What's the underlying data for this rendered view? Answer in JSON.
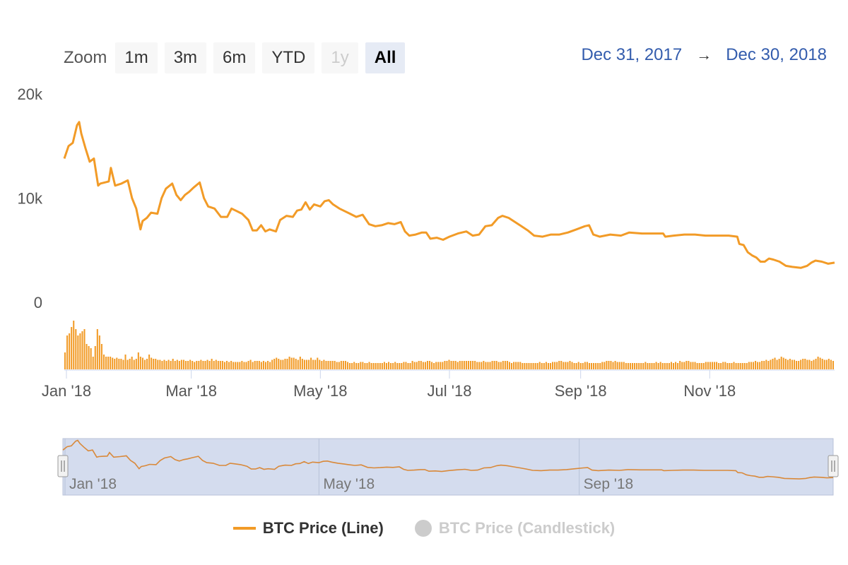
{
  "range_selector": {
    "zoom_label": "Zoom",
    "buttons": [
      {
        "label": "1m",
        "state": "normal"
      },
      {
        "label": "3m",
        "state": "normal"
      },
      {
        "label": "6m",
        "state": "normal"
      },
      {
        "label": "YTD",
        "state": "normal"
      },
      {
        "label": "1y",
        "state": "disabled"
      },
      {
        "label": "All",
        "state": "selected"
      }
    ],
    "from_date": "Dec 31, 2017",
    "arrow": "→",
    "to_date": "Dec 30, 2018"
  },
  "colors": {
    "series": "#f29b27",
    "navigator_mask": "#ccd6eb",
    "range_text": "#335cad",
    "hidden_legend": "#cccccc"
  },
  "legend": [
    {
      "label": "BTC Price (Line)",
      "visible": true
    },
    {
      "label": "BTC Price (Candlestick)",
      "visible": false
    }
  ],
  "chart_data": {
    "type": "line",
    "x_range": [
      "2017-12-31",
      "2018-12-30"
    ],
    "ylim": [
      0,
      20000
    ],
    "y_ticks": [
      "0",
      "10k",
      "20k"
    ],
    "x_ticks": [
      {
        "date": "2018-01-01",
        "label": "Jan '18"
      },
      {
        "date": "2018-03-01",
        "label": "Mar '18"
      },
      {
        "date": "2018-05-01",
        "label": "May '18"
      },
      {
        "date": "2018-07-01",
        "label": "Jul '18"
      },
      {
        "date": "2018-09-01",
        "label": "Sep '18"
      },
      {
        "date": "2018-11-01",
        "label": "Nov '18"
      }
    ],
    "navigator_ticks": [
      {
        "date": "2018-01-01",
        "label": "Jan '18"
      },
      {
        "date": "2018-05-01",
        "label": "May '18"
      },
      {
        "date": "2018-09-01",
        "label": "Sep '18"
      }
    ],
    "grid": false,
    "series": [
      {
        "name": "BTC Price (Line)",
        "points": [
          [
            "2017-12-31",
            13800
          ],
          [
            "2018-01-02",
            15000
          ],
          [
            "2018-01-04",
            15300
          ],
          [
            "2018-01-06",
            17000
          ],
          [
            "2018-01-07",
            17300
          ],
          [
            "2018-01-08",
            16200
          ],
          [
            "2018-01-10",
            14800
          ],
          [
            "2018-01-12",
            13500
          ],
          [
            "2018-01-14",
            13800
          ],
          [
            "2018-01-16",
            11200
          ],
          [
            "2018-01-17",
            11400
          ],
          [
            "2018-01-19",
            11500
          ],
          [
            "2018-01-21",
            11600
          ],
          [
            "2018-01-22",
            12900
          ],
          [
            "2018-01-24",
            11200
          ],
          [
            "2018-01-27",
            11400
          ],
          [
            "2018-01-30",
            11700
          ],
          [
            "2018-02-01",
            10000
          ],
          [
            "2018-02-03",
            9000
          ],
          [
            "2018-02-05",
            7000
          ],
          [
            "2018-02-06",
            7800
          ],
          [
            "2018-02-08",
            8100
          ],
          [
            "2018-02-10",
            8600
          ],
          [
            "2018-02-13",
            8500
          ],
          [
            "2018-02-15",
            10000
          ],
          [
            "2018-02-17",
            10900
          ],
          [
            "2018-02-20",
            11400
          ],
          [
            "2018-02-22",
            10300
          ],
          [
            "2018-02-24",
            9800
          ],
          [
            "2018-02-26",
            10300
          ],
          [
            "2018-02-28",
            10600
          ],
          [
            "2018-03-02",
            11000
          ],
          [
            "2018-03-05",
            11500
          ],
          [
            "2018-03-07",
            10000
          ],
          [
            "2018-03-09",
            9200
          ],
          [
            "2018-03-12",
            9000
          ],
          [
            "2018-03-15",
            8200
          ],
          [
            "2018-03-18",
            8200
          ],
          [
            "2018-03-20",
            9000
          ],
          [
            "2018-03-22",
            8800
          ],
          [
            "2018-03-25",
            8500
          ],
          [
            "2018-03-28",
            7900
          ],
          [
            "2018-03-30",
            6900
          ],
          [
            "2018-04-01",
            6900
          ],
          [
            "2018-04-03",
            7400
          ],
          [
            "2018-04-05",
            6800
          ],
          [
            "2018-04-07",
            7000
          ],
          [
            "2018-04-10",
            6800
          ],
          [
            "2018-04-12",
            7900
          ],
          [
            "2018-04-15",
            8300
          ],
          [
            "2018-04-18",
            8200
          ],
          [
            "2018-04-20",
            8800
          ],
          [
            "2018-04-22",
            8900
          ],
          [
            "2018-04-24",
            9600
          ],
          [
            "2018-04-26",
            8900
          ],
          [
            "2018-04-28",
            9400
          ],
          [
            "2018-05-01",
            9200
          ],
          [
            "2018-05-03",
            9700
          ],
          [
            "2018-05-05",
            9800
          ],
          [
            "2018-05-07",
            9400
          ],
          [
            "2018-05-10",
            9000
          ],
          [
            "2018-05-13",
            8700
          ],
          [
            "2018-05-15",
            8500
          ],
          [
            "2018-05-18",
            8200
          ],
          [
            "2018-05-21",
            8400
          ],
          [
            "2018-05-24",
            7500
          ],
          [
            "2018-05-27",
            7300
          ],
          [
            "2018-05-30",
            7400
          ],
          [
            "2018-06-02",
            7600
          ],
          [
            "2018-06-05",
            7500
          ],
          [
            "2018-06-08",
            7700
          ],
          [
            "2018-06-10",
            6800
          ],
          [
            "2018-06-12",
            6400
          ],
          [
            "2018-06-15",
            6500
          ],
          [
            "2018-06-18",
            6700
          ],
          [
            "2018-06-20",
            6700
          ],
          [
            "2018-06-22",
            6100
          ],
          [
            "2018-06-25",
            6200
          ],
          [
            "2018-06-28",
            6000
          ],
          [
            "2018-07-01",
            6300
          ],
          [
            "2018-07-05",
            6600
          ],
          [
            "2018-07-09",
            6800
          ],
          [
            "2018-07-12",
            6400
          ],
          [
            "2018-07-15",
            6500
          ],
          [
            "2018-07-18",
            7300
          ],
          [
            "2018-07-21",
            7400
          ],
          [
            "2018-07-24",
            8100
          ],
          [
            "2018-07-26",
            8300
          ],
          [
            "2018-07-29",
            8100
          ],
          [
            "2018-08-01",
            7700
          ],
          [
            "2018-08-04",
            7300
          ],
          [
            "2018-08-07",
            6900
          ],
          [
            "2018-08-10",
            6400
          ],
          [
            "2018-08-14",
            6300
          ],
          [
            "2018-08-18",
            6500
          ],
          [
            "2018-08-22",
            6500
          ],
          [
            "2018-08-26",
            6700
          ],
          [
            "2018-08-30",
            7000
          ],
          [
            "2018-09-03",
            7300
          ],
          [
            "2018-09-05",
            7400
          ],
          [
            "2018-09-07",
            6500
          ],
          [
            "2018-09-10",
            6300
          ],
          [
            "2018-09-15",
            6500
          ],
          [
            "2018-09-20",
            6400
          ],
          [
            "2018-09-24",
            6700
          ],
          [
            "2018-09-30",
            6600
          ],
          [
            "2018-10-05",
            6600
          ],
          [
            "2018-10-10",
            6600
          ],
          [
            "2018-10-11",
            6300
          ],
          [
            "2018-10-15",
            6400
          ],
          [
            "2018-10-20",
            6500
          ],
          [
            "2018-10-25",
            6500
          ],
          [
            "2018-10-30",
            6400
          ],
          [
            "2018-11-05",
            6400
          ],
          [
            "2018-11-10",
            6400
          ],
          [
            "2018-11-14",
            6300
          ],
          [
            "2018-11-15",
            5600
          ],
          [
            "2018-11-17",
            5500
          ],
          [
            "2018-11-19",
            4800
          ],
          [
            "2018-11-21",
            4500
          ],
          [
            "2018-11-23",
            4300
          ],
          [
            "2018-11-25",
            3900
          ],
          [
            "2018-11-27",
            3900
          ],
          [
            "2018-11-29",
            4200
          ],
          [
            "2018-12-01",
            4100
          ],
          [
            "2018-12-04",
            3900
          ],
          [
            "2018-12-07",
            3500
          ],
          [
            "2018-12-10",
            3400
          ],
          [
            "2018-12-14",
            3300
          ],
          [
            "2018-12-17",
            3500
          ],
          [
            "2018-12-19",
            3800
          ],
          [
            "2018-12-21",
            4000
          ],
          [
            "2018-12-24",
            3900
          ],
          [
            "2018-12-27",
            3700
          ],
          [
            "2018-12-30",
            3800
          ]
        ]
      }
    ],
    "volume_bars": [
      80,
      160,
      170,
      200,
      230,
      190,
      160,
      170,
      180,
      190,
      120,
      110,
      100,
      60,
      110,
      190,
      160,
      120,
      70,
      60,
      60,
      60,
      55,
      50,
      55,
      50,
      50,
      45,
      70,
      45,
      50,
      60,
      45,
      50,
      80,
      60,
      55,
      45,
      50,
      70,
      55,
      50,
      50,
      45,
      45,
      40,
      45,
      40,
      45,
      40,
      50,
      40,
      45,
      40,
      45,
      45,
      40,
      40,
      45,
      40,
      35,
      40,
      40,
      45,
      40,
      40,
      45,
      40,
      50,
      40,
      45,
      40,
      40,
      40,
      35,
      40,
      35,
      40,
      35,
      35,
      35,
      35,
      40,
      35,
      35,
      40,
      45,
      35,
      40,
      40,
      40,
      35,
      40,
      35,
      40,
      35,
      45,
      50,
      55,
      50,
      45,
      45,
      50,
      50,
      60,
      55,
      55,
      50,
      45,
      60,
      50,
      45,
      45,
      45,
      55,
      45,
      45,
      55,
      45,
      40,
      45,
      40,
      40,
      40,
      40,
      40,
      35,
      35,
      40,
      40,
      40,
      35,
      30,
      30,
      35,
      30,
      30,
      35,
      35,
      30,
      30,
      35,
      30,
      30,
      30,
      30,
      30,
      30,
      35,
      30,
      35,
      30,
      30,
      35,
      30,
      30,
      30,
      35,
      35,
      30,
      30,
      40,
      35,
      35,
      40,
      40,
      35,
      35,
      40,
      40,
      35,
      30,
      35,
      35,
      35,
      35,
      40,
      40,
      45,
      40,
      40,
      40,
      35,
      40,
      40,
      40,
      40,
      40,
      40,
      40,
      40,
      35,
      35,
      35,
      40,
      35,
      35,
      35,
      40,
      40,
      40,
      35,
      35,
      40,
      40,
      40,
      35,
      30,
      35,
      35,
      35,
      35,
      30,
      30,
      30,
      30,
      30,
      30,
      30,
      30,
      35,
      30,
      30,
      35,
      30,
      30,
      35,
      35,
      35,
      40,
      40,
      35,
      35,
      35,
      40,
      35,
      30,
      30,
      35,
      30,
      30,
      35,
      35,
      30,
      30,
      30,
      30,
      30,
      30,
      35,
      35,
      40,
      40,
      40,
      35,
      40,
      35,
      35,
      35,
      35,
      30,
      30,
      30,
      30,
      30,
      30,
      30,
      30,
      30,
      35,
      30,
      30,
      30,
      30,
      35,
      30,
      35,
      30,
      30,
      30,
      30,
      35,
      30,
      35,
      30,
      40,
      35,
      35,
      40,
      40,
      35,
      35,
      35,
      30,
      30,
      30,
      30,
      35,
      35,
      35,
      35,
      35,
      35,
      30,
      30,
      35,
      35,
      30,
      30,
      30,
      35,
      30,
      30,
      30,
      30,
      30,
      30,
      35,
      35,
      35,
      40,
      35,
      35,
      40,
      40,
      45,
      40,
      45,
      50,
      55,
      45,
      50,
      60,
      55,
      50,
      45,
      50,
      45,
      45,
      40,
      40,
      45,
      50,
      50,
      45,
      45,
      40,
      45,
      50,
      60,
      55,
      50,
      45,
      45,
      50,
      45,
      40
    ]
  }
}
